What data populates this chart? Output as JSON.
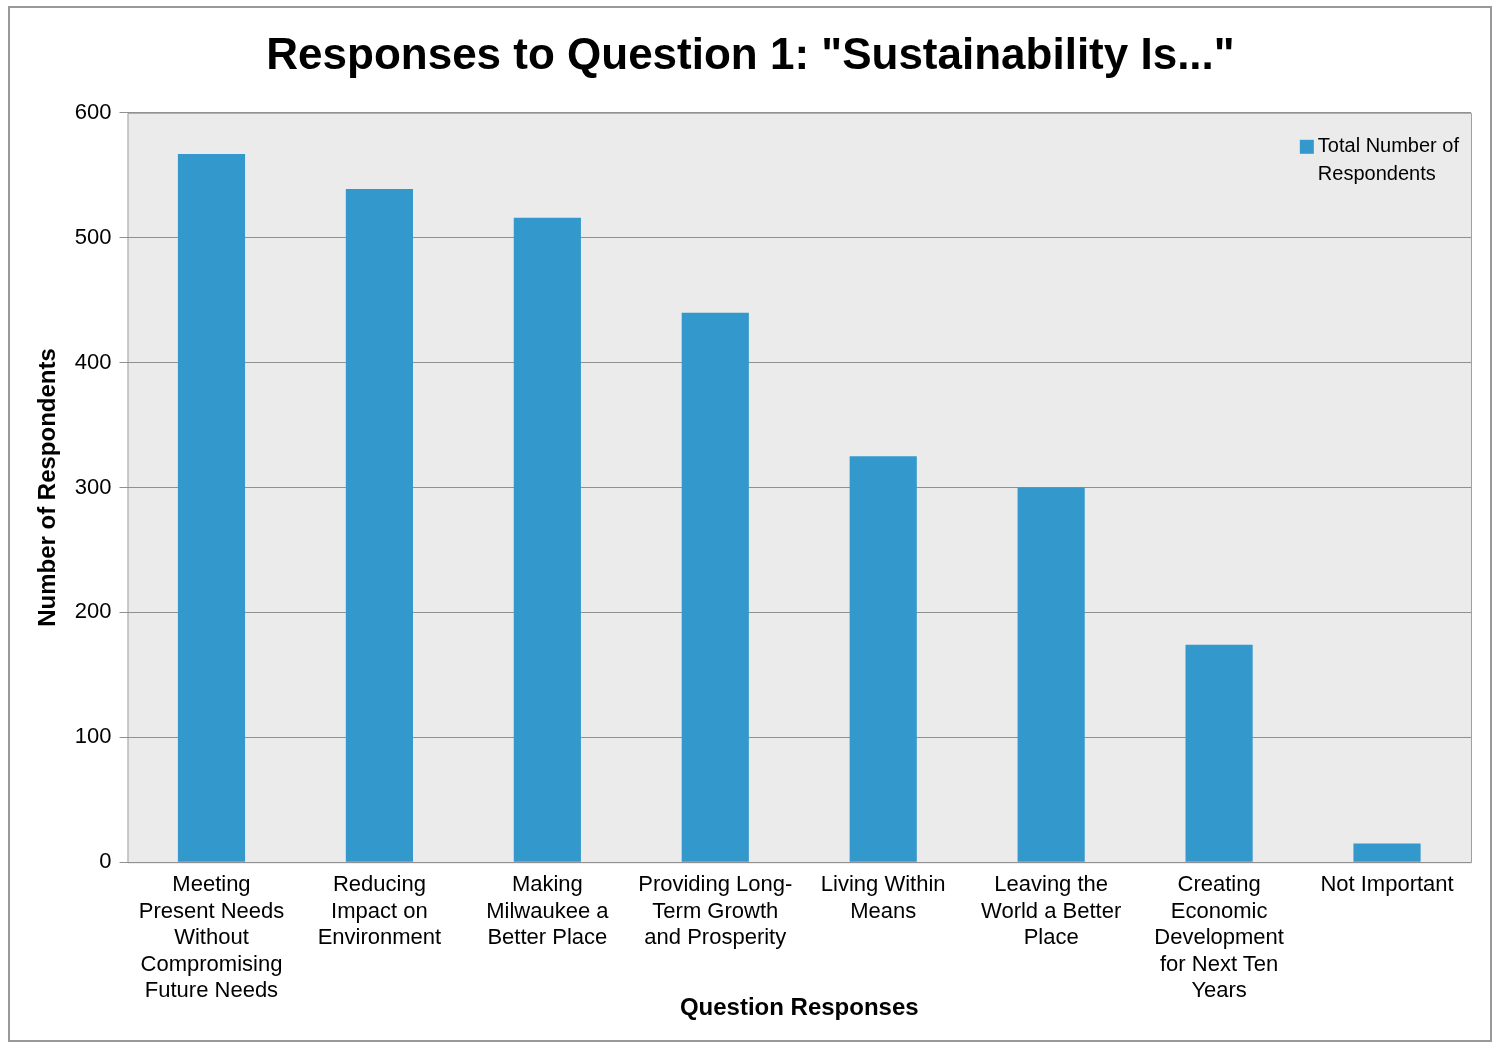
{
  "chart_data": {
    "type": "bar",
    "title": "Responses to Question 1: \"Sustainability Is...\"",
    "xlabel": "Question Responses",
    "ylabel": "Number of Respondents",
    "categories": [
      "Meeting Present Needs Without Compromising Future Needs",
      "Reducing Impact on Environment",
      "Making Milwaukee a Better Place",
      "Providing Long-Term Growth and Prosperity",
      "Living Within Means",
      "Leaving the World a Better Place",
      "Creating Economic Development for Next Ten Years",
      "Not Important"
    ],
    "series": [
      {
        "name": "Total Number of Respondents",
        "color": "#3399cc",
        "values": [
          567,
          539,
          516,
          440,
          325,
          300,
          174,
          15
        ]
      }
    ],
    "ylim": [
      0,
      600
    ],
    "yticks": [
      0,
      100,
      200,
      300,
      400,
      500,
      600
    ],
    "grid": "y",
    "legend": "top right"
  }
}
